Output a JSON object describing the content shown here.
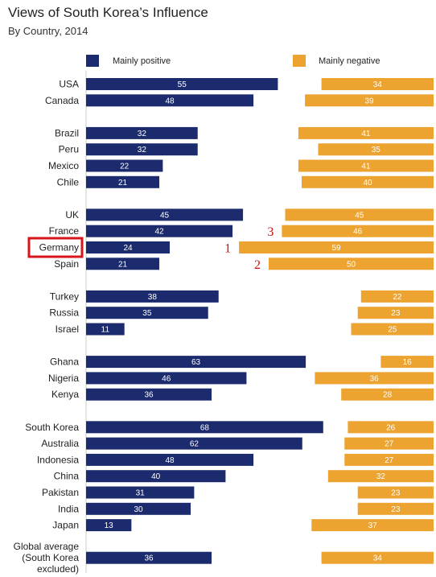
{
  "colors": {
    "positive": "#1c2b6e",
    "negative": "#eca32f",
    "annotation": "#d9141b",
    "axis": "#cccccc"
  },
  "chart_data": {
    "type": "bar",
    "title": "Views of South Korea’s Influence",
    "subtitle": "By Country, 2014",
    "legend": {
      "placement": "top",
      "positive": "Mainly positive",
      "negative": "Mainly negative"
    },
    "groups": [
      {
        "rows": [
          {
            "country": "USA",
            "positive": 55,
            "negative": 34
          },
          {
            "country": "Canada",
            "positive": 48,
            "negative": 39
          }
        ]
      },
      {
        "rows": [
          {
            "country": "Brazil",
            "positive": 32,
            "negative": 41
          },
          {
            "country": "Peru",
            "positive": 32,
            "negative": 35
          },
          {
            "country": "Mexico",
            "positive": 22,
            "negative": 41
          },
          {
            "country": "Chile",
            "positive": 21,
            "negative": 40
          }
        ]
      },
      {
        "rows": [
          {
            "country": "UK",
            "positive": 45,
            "negative": 45
          },
          {
            "country": "France",
            "positive": 42,
            "negative": 46,
            "annotation": "3"
          },
          {
            "country": "Germany",
            "positive": 24,
            "negative": 59,
            "annotation": "1",
            "highlighted": true
          },
          {
            "country": "Spain",
            "positive": 21,
            "negative": 50,
            "annotation": "2"
          }
        ]
      },
      {
        "rows": [
          {
            "country": "Turkey",
            "positive": 38,
            "negative": 22
          },
          {
            "country": "Russia",
            "positive": 35,
            "negative": 23
          },
          {
            "country": "Israel",
            "positive": 11,
            "negative": 25
          }
        ]
      },
      {
        "rows": [
          {
            "country": "Ghana",
            "positive": 63,
            "negative": 16
          },
          {
            "country": "Nigeria",
            "positive": 46,
            "negative": 36
          },
          {
            "country": "Kenya",
            "positive": 36,
            "negative": 28
          }
        ]
      },
      {
        "rows": [
          {
            "country": "South Korea",
            "positive": 68,
            "negative": 26
          },
          {
            "country": "Australia",
            "positive": 62,
            "negative": 27
          },
          {
            "country": "Indonesia",
            "positive": 48,
            "negative": 27
          },
          {
            "country": "China",
            "positive": 40,
            "negative": 32
          },
          {
            "country": "Pakistan",
            "positive": 31,
            "negative": 23
          },
          {
            "country": "India",
            "positive": 30,
            "negative": 23
          },
          {
            "country": "Japan",
            "positive": 13,
            "negative": 37
          }
        ]
      },
      {
        "rows": [
          {
            "country": "Global average (South Korea excluded)",
            "label_lines": [
              "Global average",
              "(South Korea",
              "excluded)"
            ],
            "positive": 36,
            "negative": 34
          }
        ]
      }
    ]
  }
}
